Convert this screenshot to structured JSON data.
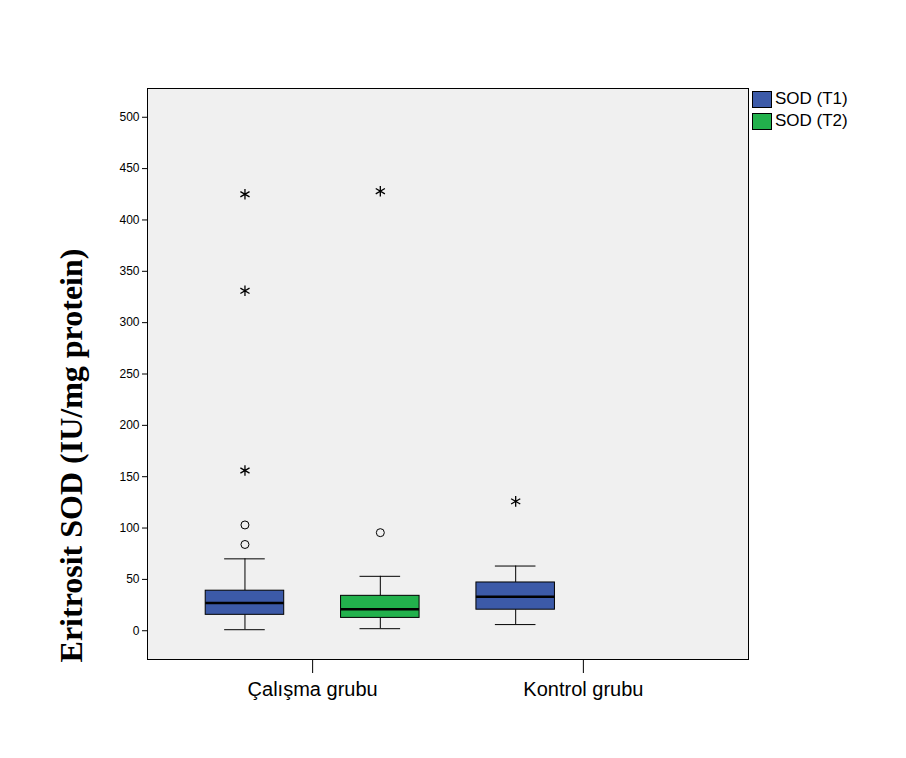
{
  "chart_data": {
    "type": "box",
    "y_label": "Eritrosit SOD (IU/mg protein)",
    "categories": [
      "Çalışma grubu",
      "Kontrol grubu"
    ],
    "ylim": [
      -28,
      528
    ],
    "yticks": [
      0,
      50,
      100,
      150,
      200,
      250,
      300,
      350,
      400,
      450,
      500
    ],
    "grid": false,
    "legend": "right",
    "series": [
      {
        "name": "SOD (T1)",
        "color": "#3c5aa8",
        "values": [
          {
            "min": 1,
            "q1": 15.5,
            "median": 27,
            "q3": 39,
            "max": 70,
            "outliers": [
              84,
              103
            ],
            "extremes": [
              156,
              331,
              425
            ]
          },
          {
            "min": 6,
            "q1": 20.5,
            "median": 33,
            "q3": 47,
            "max": 63,
            "outliers": [],
            "extremes": [
              126
            ]
          }
        ]
      },
      {
        "name": "SOD (T2)",
        "color": "#22b14c",
        "values": [
          {
            "min": 2,
            "q1": 12.5,
            "median": 21,
            "q3": 34,
            "max": 53,
            "outliers": [
              95.5
            ],
            "extremes": [
              428
            ]
          },
          null
        ]
      }
    ]
  }
}
